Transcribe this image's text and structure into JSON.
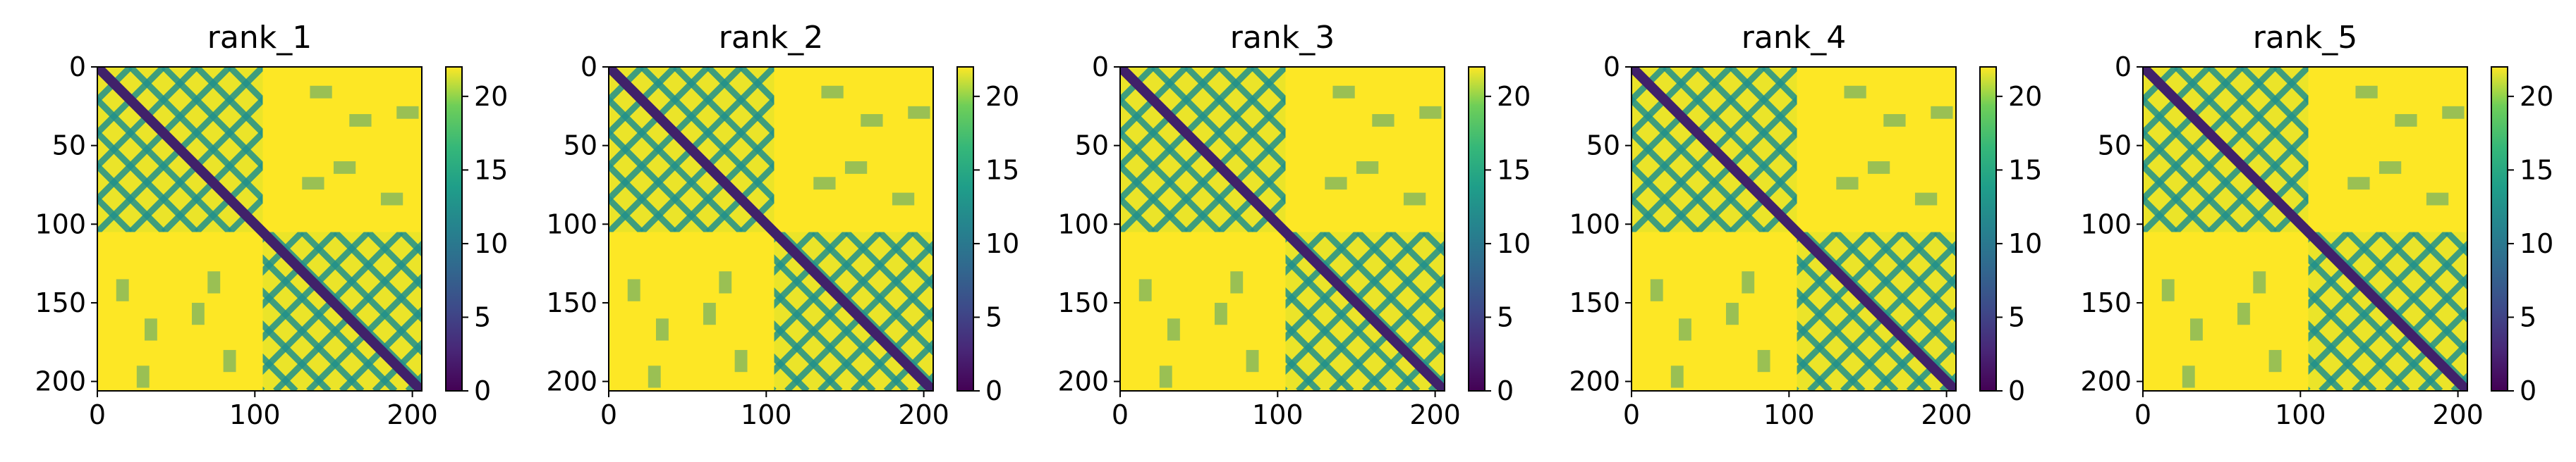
{
  "chart_data": [
    {
      "type": "heatmap",
      "title": "rank_1",
      "matrix_size": 206,
      "xlim": [
        0,
        206
      ],
      "ylim": [
        206,
        0
      ],
      "xticks": [
        0,
        100,
        200
      ],
      "yticks": [
        0,
        50,
        100,
        150,
        200
      ],
      "colorbar": {
        "ticks": [
          0,
          5,
          10,
          15,
          20
        ],
        "range": [
          0,
          22
        ],
        "colormap": "viridis"
      },
      "domains": [
        [
          0,
          105
        ],
        [
          105,
          206
        ]
      ],
      "band_period": 21,
      "diagonal_value": 2
    },
    {
      "type": "heatmap",
      "title": "rank_2",
      "matrix_size": 206,
      "xlim": [
        0,
        206
      ],
      "ylim": [
        206,
        0
      ],
      "xticks": [
        0,
        100,
        200
      ],
      "yticks": [
        0,
        50,
        100,
        150,
        200
      ],
      "colorbar": {
        "ticks": [
          0,
          5,
          10,
          15,
          20
        ],
        "range": [
          0,
          22
        ],
        "colormap": "viridis"
      },
      "domains": [
        [
          0,
          105
        ],
        [
          105,
          206
        ]
      ],
      "band_period": 21,
      "diagonal_value": 2
    },
    {
      "type": "heatmap",
      "title": "rank_3",
      "matrix_size": 206,
      "xlim": [
        0,
        206
      ],
      "ylim": [
        206,
        0
      ],
      "xticks": [
        0,
        100,
        200
      ],
      "yticks": [
        0,
        50,
        100,
        150,
        200
      ],
      "colorbar": {
        "ticks": [
          0,
          5,
          10,
          15,
          20
        ],
        "range": [
          0,
          22
        ],
        "colormap": "viridis"
      },
      "domains": [
        [
          0,
          105
        ],
        [
          105,
          206
        ]
      ],
      "band_period": 21,
      "diagonal_value": 2
    },
    {
      "type": "heatmap",
      "title": "rank_4",
      "matrix_size": 206,
      "xlim": [
        0,
        206
      ],
      "ylim": [
        206,
        0
      ],
      "xticks": [
        0,
        100,
        200
      ],
      "yticks": [
        0,
        50,
        100,
        150,
        200
      ],
      "colorbar": {
        "ticks": [
          0,
          5,
          10,
          15,
          20
        ],
        "range": [
          0,
          22
        ],
        "colormap": "viridis"
      },
      "domains": [
        [
          0,
          105
        ],
        [
          105,
          206
        ]
      ],
      "band_period": 21,
      "diagonal_value": 2
    },
    {
      "type": "heatmap",
      "title": "rank_5",
      "matrix_size": 206,
      "xlim": [
        0,
        206
      ],
      "ylim": [
        206,
        0
      ],
      "xticks": [
        0,
        100,
        200
      ],
      "yticks": [
        0,
        50,
        100,
        150,
        200
      ],
      "colorbar": {
        "ticks": [
          0,
          5,
          10,
          15,
          20
        ],
        "range": [
          0,
          22
        ],
        "colormap": "viridis"
      },
      "domains": [
        [
          0,
          105
        ],
        [
          105,
          206
        ]
      ],
      "band_period": 21,
      "diagonal_value": 2
    }
  ],
  "colors": {
    "high": "#fde725",
    "mid": "#21918c",
    "low": "#3b528b",
    "min": "#440154"
  }
}
